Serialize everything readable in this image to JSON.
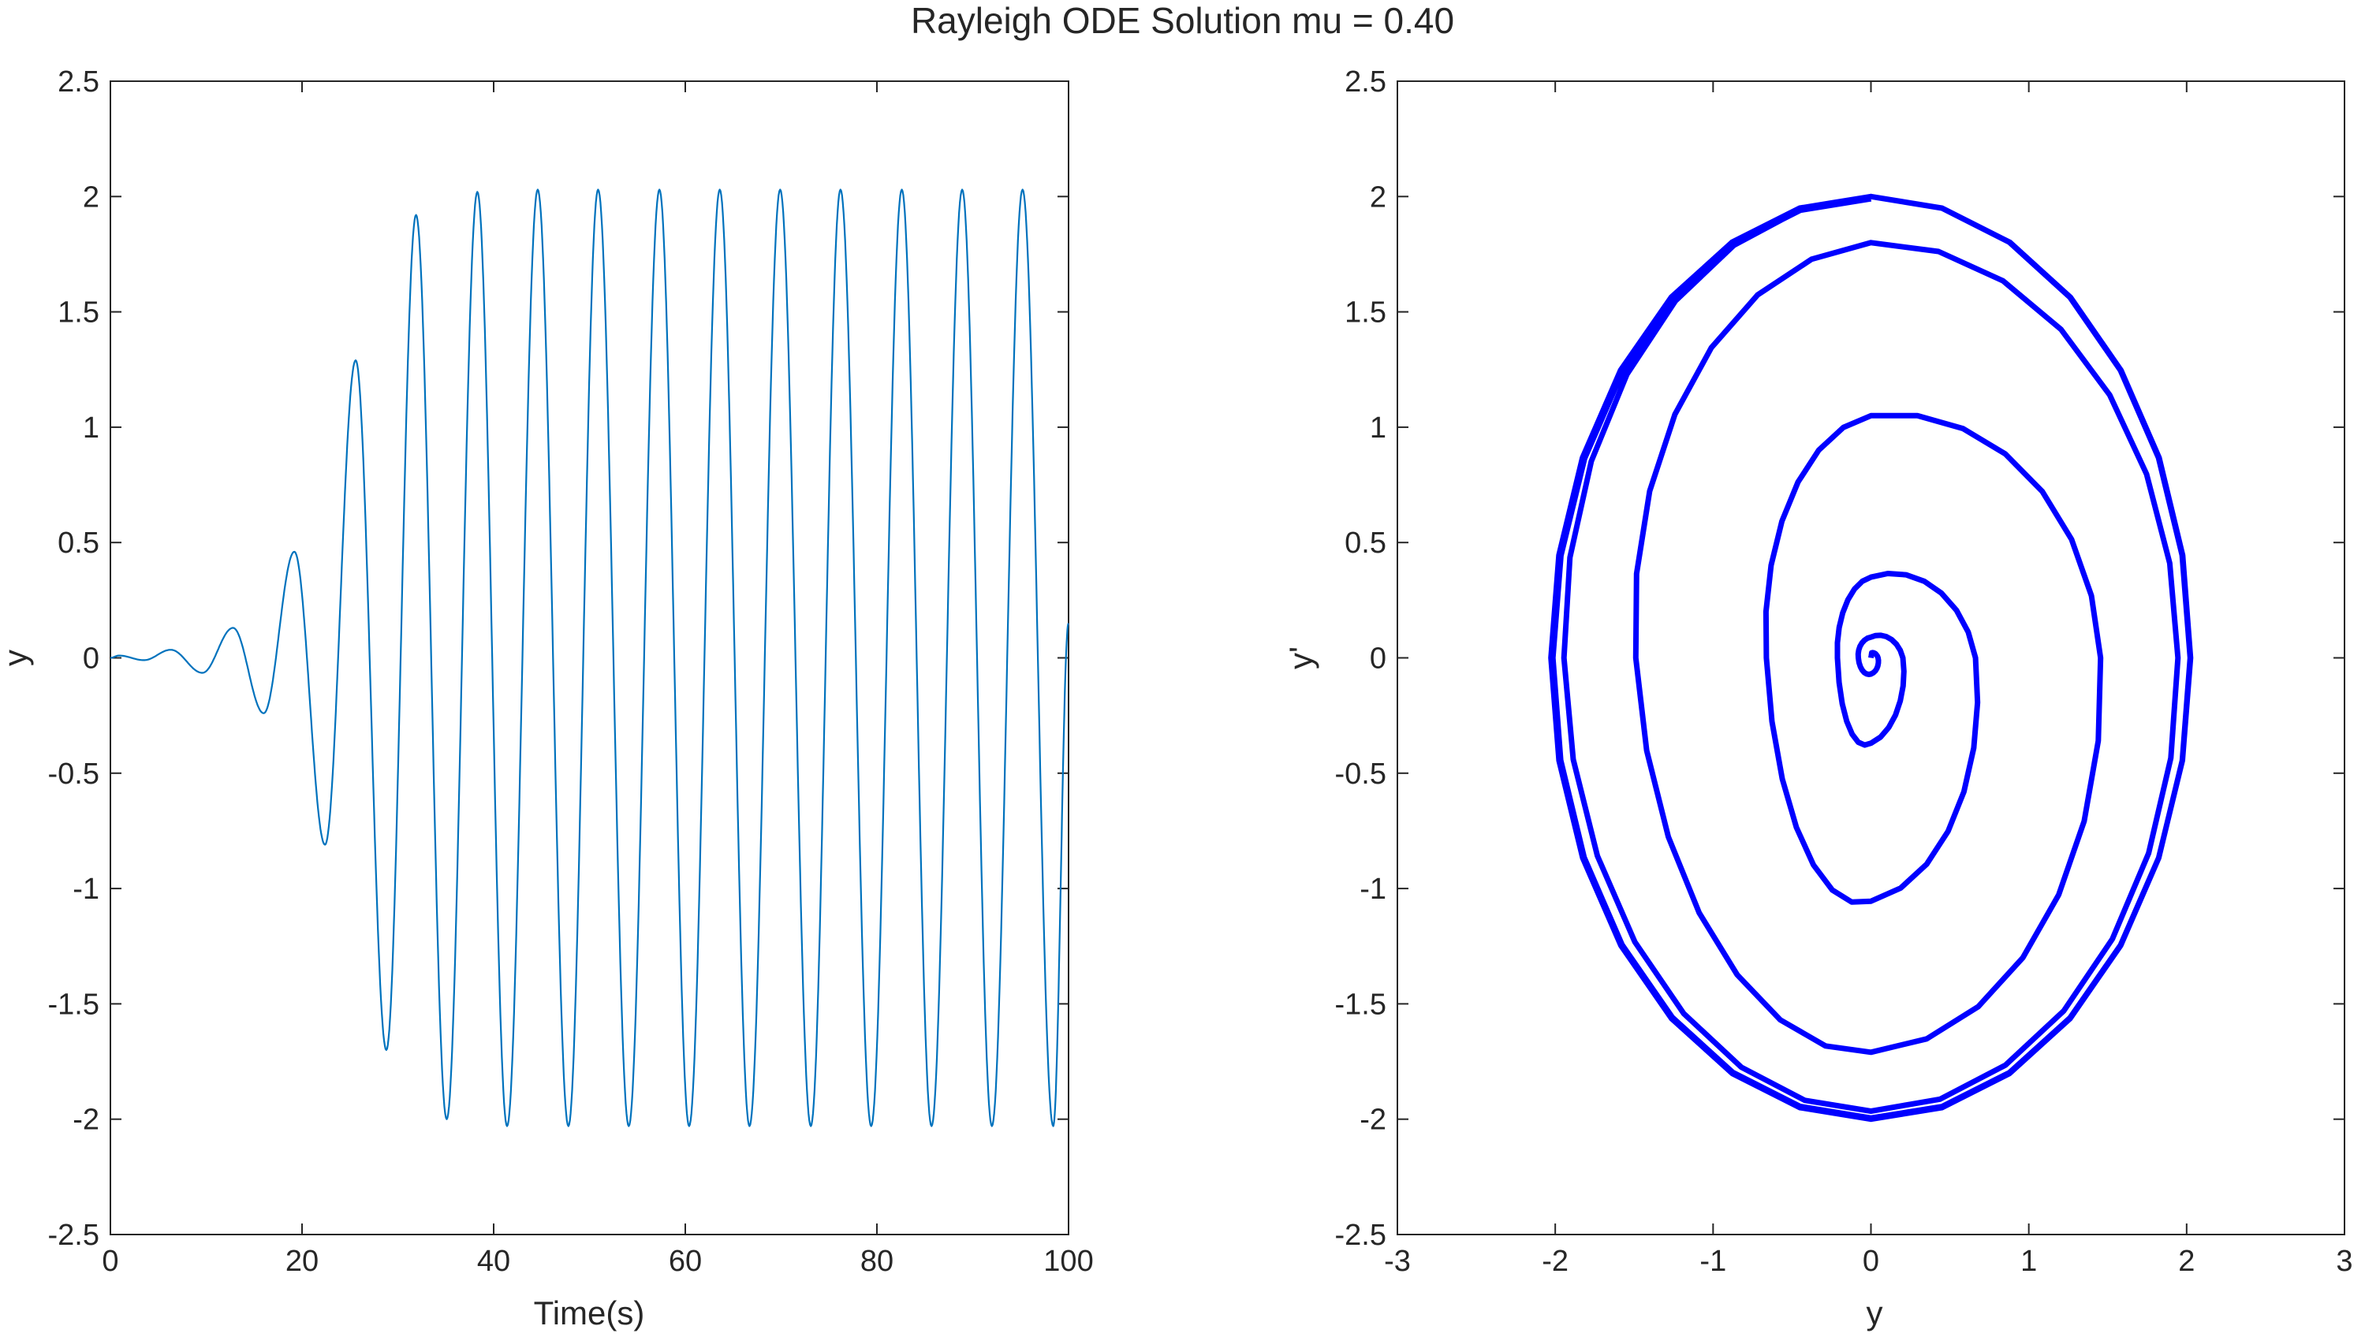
{
  "figure_title": "Rayleigh ODE Solution mu = 0.40",
  "chart_data": [
    {
      "type": "line",
      "title": "Rayleigh ODE Solution mu = 0.40",
      "xlabel": "Time(s)",
      "ylabel": "y",
      "xlim": [
        0,
        100
      ],
      "ylim": [
        -2.5,
        2.5
      ],
      "xticks": [
        "0",
        "20",
        "40",
        "60",
        "80",
        "100"
      ],
      "yticks": [
        "-2.5",
        "-2",
        "-1.5",
        "-1",
        "-0.5",
        "0",
        "0.5",
        "1",
        "1.5",
        "2",
        "2.5"
      ],
      "grid": false,
      "series": [
        {
          "color": "#0072BD",
          "line_width": "thin",
          "peaks": [
            {
              "t": 0.0,
              "y": 0.0
            },
            {
              "t": 0.9,
              "y": 0.01
            },
            {
              "t": 3.5,
              "y": -0.01
            },
            {
              "t": 6.3,
              "y": 0.035
            },
            {
              "t": 9.6,
              "y": -0.065
            },
            {
              "t": 12.8,
              "y": 0.13
            },
            {
              "t": 16.0,
              "y": -0.24
            },
            {
              "t": 19.2,
              "y": 0.46
            },
            {
              "t": 22.4,
              "y": -0.81
            },
            {
              "t": 25.6,
              "y": 1.29
            },
            {
              "t": 28.8,
              "y": -1.7
            },
            {
              "t": 31.9,
              "y": 1.92
            },
            {
              "t": 35.1,
              "y": -2.0
            },
            {
              "t": 38.3,
              "y": 2.02
            },
            {
              "t": 41.4,
              "y": -2.03
            },
            {
              "t": 44.6,
              "y": 2.03
            },
            {
              "t": 47.8,
              "y": -2.03
            },
            {
              "t": 50.9,
              "y": 2.03
            },
            {
              "t": 54.1,
              "y": -2.03
            },
            {
              "t": 57.3,
              "y": 2.03
            },
            {
              "t": 60.4,
              "y": -2.03
            },
            {
              "t": 63.6,
              "y": 2.03
            },
            {
              "t": 66.7,
              "y": -2.03
            },
            {
              "t": 69.9,
              "y": 2.03
            },
            {
              "t": 73.1,
              "y": -2.03
            },
            {
              "t": 76.2,
              "y": 2.03
            },
            {
              "t": 79.4,
              "y": -2.03
            },
            {
              "t": 82.6,
              "y": 2.03
            },
            {
              "t": 85.7,
              "y": -2.03
            },
            {
              "t": 88.9,
              "y": 2.03
            },
            {
              "t": 92.0,
              "y": -2.03
            },
            {
              "t": 95.2,
              "y": 2.03
            },
            {
              "t": 98.4,
              "y": -2.03
            },
            {
              "t": 100.0,
              "y": 0.15
            }
          ]
        }
      ]
    },
    {
      "type": "line",
      "title": "",
      "xlabel": "y",
      "ylabel": "y'",
      "xlim": [
        -3,
        3
      ],
      "ylim": [
        -2.5,
        2.5
      ],
      "xticks": [
        "-3",
        "-2",
        "-1",
        "0",
        "1",
        "2",
        "3"
      ],
      "yticks": [
        "-2.5",
        "-2",
        "-1.5",
        "-1",
        "-0.5",
        "0",
        "0.5",
        "1",
        "1.5",
        "2",
        "2.5"
      ],
      "grid": false,
      "series": [
        {
          "color": "#0000FF",
          "line_width": "thick",
          "phase_portrait": {
            "start": {
              "y": 0.0,
              "yp": 0.0
            },
            "spiral_extents": [
              {
                "turn": 1,
                "y_max": 0.12,
                "yp_max": 0.09,
                "y_min": -0.1,
                "yp_min": -0.12
              },
              {
                "turn": 2,
                "y_max": 0.45,
                "yp_max": 0.35,
                "y_min": -0.25,
                "yp_min": -0.62
              },
              {
                "turn": 3,
                "y_max": 1.3,
                "yp_max": 1.05,
                "y_min": -0.8,
                "yp_min": -1.49
              },
              {
                "turn": 4,
                "y_max": 1.92,
                "yp_max": 1.8,
                "y_min": -1.72,
                "yp_min": -1.93
              },
              {
                "turn": 5,
                "y_max": 2.02,
                "yp_max": 2.0,
                "y_min": -2.02,
                "yp_min": -2.0
              }
            ],
            "limit_cycle": {
              "y_amplitude": 2.03,
              "yp_amplitude": 2.0
            }
          }
        }
      ]
    }
  ]
}
